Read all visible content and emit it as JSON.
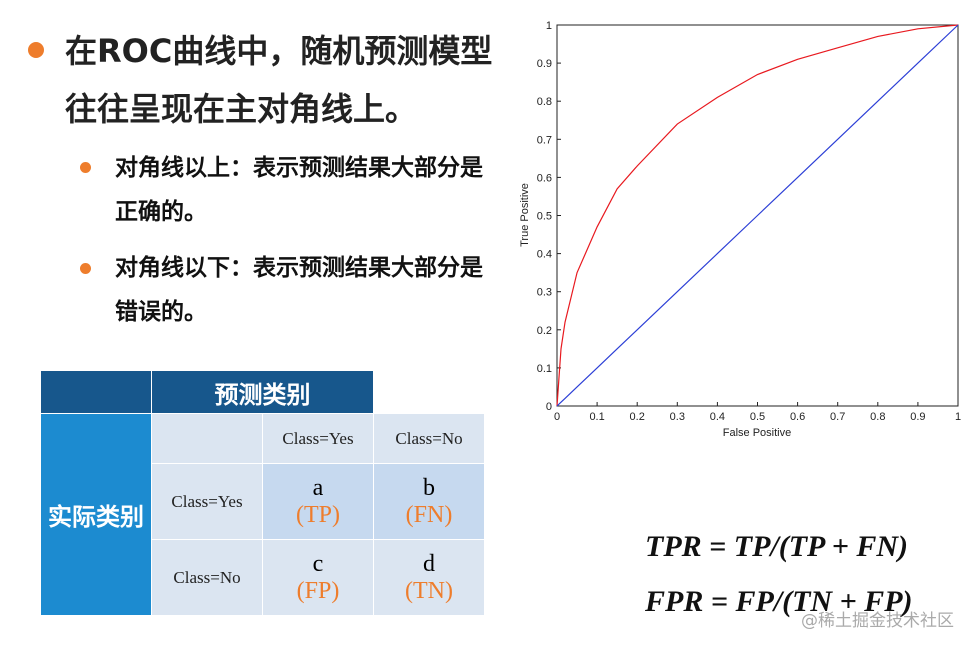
{
  "bullets": [
    {
      "text": "在ROC曲线中，随机预测模型往往呈现在主对角线上。",
      "sub": [
        "对角线以上：表示预测结果大部分是正确的。",
        "对角线以下：表示预测结果大部分是错误的。"
      ]
    }
  ],
  "table": {
    "header": "预测类别",
    "row_header": "实际类别",
    "columns": [
      "Class=Yes",
      "Class=No"
    ],
    "rows": [
      {
        "label": "Class=Yes",
        "cells": [
          {
            "letter": "a",
            "term": "(TP)"
          },
          {
            "letter": "b",
            "term": "(FN)"
          }
        ]
      },
      {
        "label": "Class=No",
        "cells": [
          {
            "letter": "c",
            "term": "(FP)"
          },
          {
            "letter": "d",
            "term": "(TN)"
          }
        ]
      }
    ]
  },
  "chart_data": {
    "type": "line",
    "x_label": "False Positive",
    "y_label": "True Positive",
    "x": [
      0,
      0.01,
      0.02,
      0.05,
      0.1,
      0.15,
      0.2,
      0.3,
      0.4,
      0.5,
      0.6,
      0.7,
      0.8,
      0.9,
      1
    ],
    "series": [
      {
        "color": "#e8191f",
        "values": [
          0,
          0.15,
          0.22,
          0.35,
          0.47,
          0.57,
          0.63,
          0.74,
          0.81,
          0.87,
          0.91,
          0.94,
          0.97,
          0.99,
          1
        ]
      },
      {
        "color": "#2c3fd6",
        "values": [
          0,
          0.01,
          0.02,
          0.05,
          0.1,
          0.15,
          0.2,
          0.3,
          0.4,
          0.5,
          0.6,
          0.7,
          0.8,
          0.9,
          1
        ]
      }
    ],
    "xlim": [
      0,
      1
    ],
    "ylim": [
      0,
      1
    ],
    "xticks": [
      0,
      0.1,
      0.2,
      0.3,
      0.4,
      0.5,
      0.6,
      0.7,
      0.8,
      0.9,
      1
    ],
    "yticks": [
      0,
      0.1,
      0.2,
      0.3,
      0.4,
      0.5,
      0.6,
      0.7,
      0.8,
      0.9,
      1
    ]
  },
  "formulas": [
    "TPR = TP/(TP + FN)",
    "FPR = FP/(TN + FP)"
  ],
  "watermark": "@稀土掘金技术社区"
}
